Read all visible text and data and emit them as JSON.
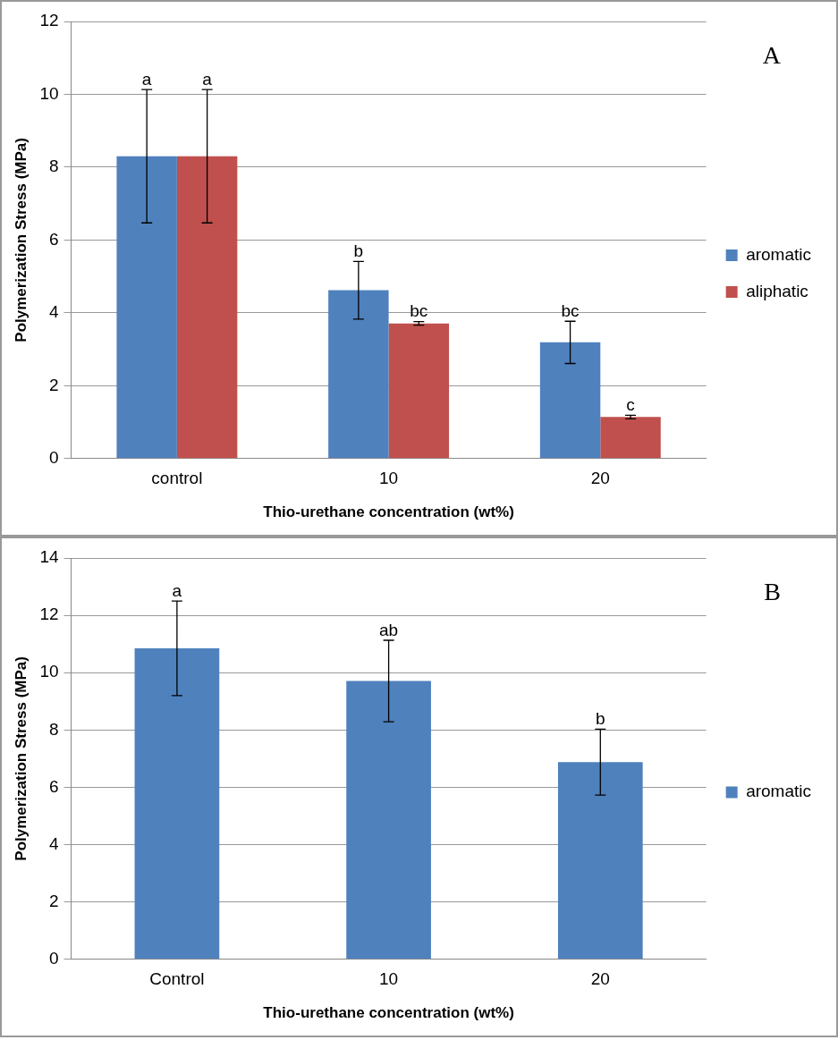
{
  "chart_data": [
    {
      "type": "bar",
      "annotations": [
        "A",
        "a",
        "a"
      ],
      "xlabel": "Thio-urethane concentration (wt%)",
      "ylabel": "Polymerization Stress (MPa)",
      "categories": [
        "control",
        "10",
        "20"
      ],
      "series": [
        {
          "name": "aromatic",
          "color": "#4f81bd",
          "values": [
            8.3,
            4.62,
            3.19
          ],
          "errors": [
            1.83,
            0.79,
            0.58
          ],
          "value_labels": [
            null,
            "b",
            "bc"
          ]
        },
        {
          "name": "aliphatic",
          "color": "#c0504d",
          "values": [
            8.3,
            3.71,
            1.14
          ],
          "errors": [
            1.83,
            0.05,
            0.05
          ],
          "value_labels": [
            null,
            "bc",
            "c"
          ]
        }
      ],
      "ylim": [
        0,
        12
      ],
      "yticks": [
        0,
        2,
        4,
        6,
        8,
        10,
        12
      ],
      "grid": "y",
      "legend": "right"
    },
    {
      "type": "bar",
      "annotations": [
        "B"
      ],
      "xlabel": "Thio-urethane concentration (wt%)",
      "ylabel": "Polymerization Stress (MPa)",
      "categories": [
        "Control",
        "10",
        "20"
      ],
      "series": [
        {
          "name": "aromatic",
          "color": "#4f81bd",
          "values": [
            10.85,
            9.71,
            6.88
          ],
          "errors": [
            1.65,
            1.42,
            1.15
          ],
          "value_labels": [
            "a",
            "ab",
            "b"
          ]
        }
      ],
      "ylim": [
        0,
        14
      ],
      "yticks": [
        0,
        2,
        4,
        6,
        8,
        10,
        12,
        14
      ],
      "grid": "y",
      "legend": "right"
    }
  ]
}
